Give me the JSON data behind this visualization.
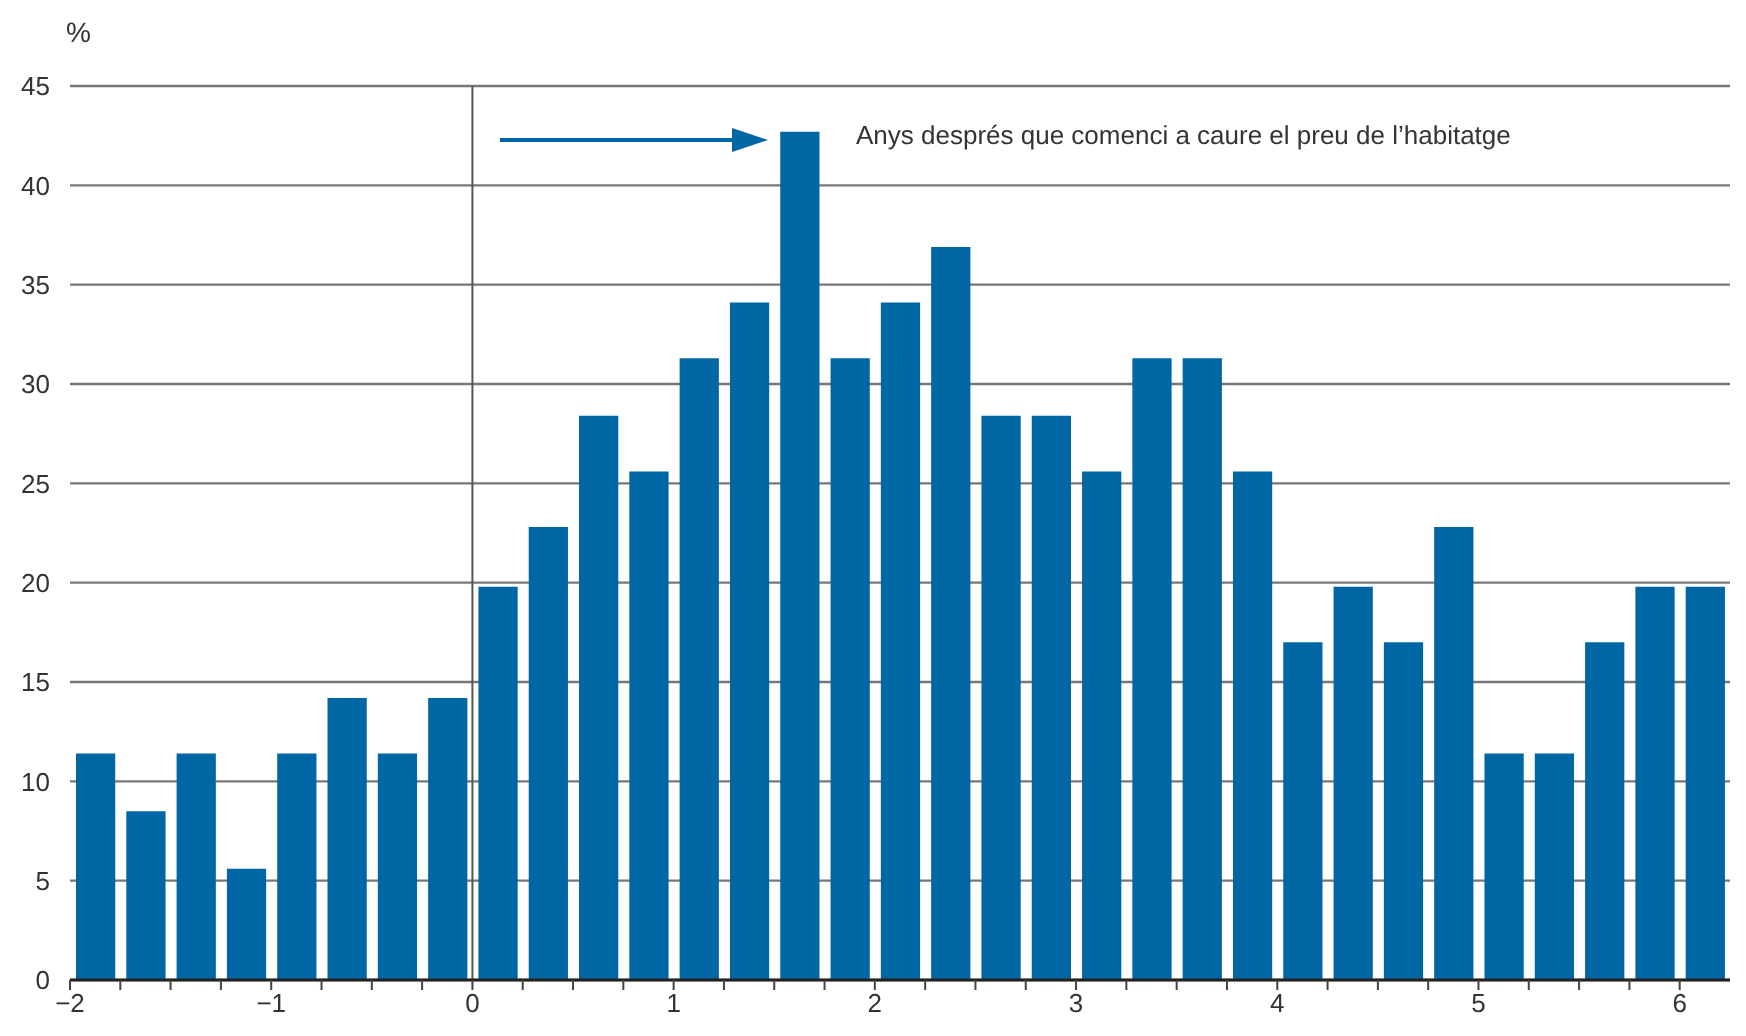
{
  "chart_data": {
    "type": "bar",
    "ylabel": "%",
    "annotations": [
      "Anys després que comenci a caure el preu de l’habitatge"
    ],
    "x": [
      -1.875,
      -1.625,
      -1.375,
      -1.125,
      -0.875,
      -0.625,
      -0.375,
      -0.125,
      0.125,
      0.375,
      0.625,
      0.875,
      1.125,
      1.375,
      1.625,
      1.875,
      2.125,
      2.375,
      2.625,
      2.875,
      3.125,
      3.375,
      3.625,
      3.875,
      4.125,
      4.375,
      4.625,
      4.875,
      5.125,
      5.375,
      5.625,
      5.875,
      6.125
    ],
    "values": [
      11.4,
      8.5,
      11.4,
      5.6,
      11.4,
      14.2,
      11.4,
      14.2,
      19.8,
      22.8,
      28.4,
      25.6,
      31.3,
      34.1,
      42.7,
      31.3,
      34.1,
      36.9,
      28.4,
      28.4,
      25.6,
      31.3,
      31.3,
      25.6,
      17.0,
      19.8,
      17.0,
      22.8,
      11.4,
      11.4,
      17.0,
      19.8,
      19.8
    ],
    "color": "#0066a4",
    "xlim": [
      -2,
      6.25
    ],
    "xticks": [
      -2,
      {
        "value": -1.75,
        "label": null
      },
      {
        "value": -1.5,
        "label": null
      },
      {
        "value": -1.25,
        "label": null
      },
      -1,
      {
        "value": -0.75,
        "label": null
      },
      {
        "value": -0.5,
        "label": null
      },
      {
        "value": -0.25,
        "label": null
      },
      0,
      {
        "value": 0.25,
        "label": null
      },
      {
        "value": 0.5,
        "label": null
      },
      {
        "value": 0.75,
        "label": null
      },
      1,
      {
        "value": 1.25,
        "label": null
      },
      {
        "value": 1.5,
        "label": null
      },
      {
        "value": 1.75,
        "label": null
      },
      2,
      {
        "value": 2.25,
        "label": null
      },
      {
        "value": 2.5,
        "label": null
      },
      {
        "value": 2.75,
        "label": null
      },
      3,
      {
        "value": 3.25,
        "label": null
      },
      {
        "value": 3.5,
        "label": null
      },
      {
        "value": 3.75,
        "label": null
      },
      4,
      {
        "value": 4.25,
        "label": null
      },
      {
        "value": 4.5,
        "label": null
      },
      {
        "value": 4.75,
        "label": null
      },
      5,
      {
        "value": 5.25,
        "label": null
      },
      {
        "value": 5.5,
        "label": null
      },
      {
        "value": 5.75,
        "label": null
      },
      6
    ],
    "ylim": [
      0,
      45
    ],
    "yticks": [
      0,
      5,
      10,
      15,
      20,
      25,
      30,
      35,
      40,
      45
    ],
    "grid": "y",
    "ref_lines": [
      {
        "axis": "x",
        "value": 0,
        "color": "#555555"
      }
    ]
  }
}
